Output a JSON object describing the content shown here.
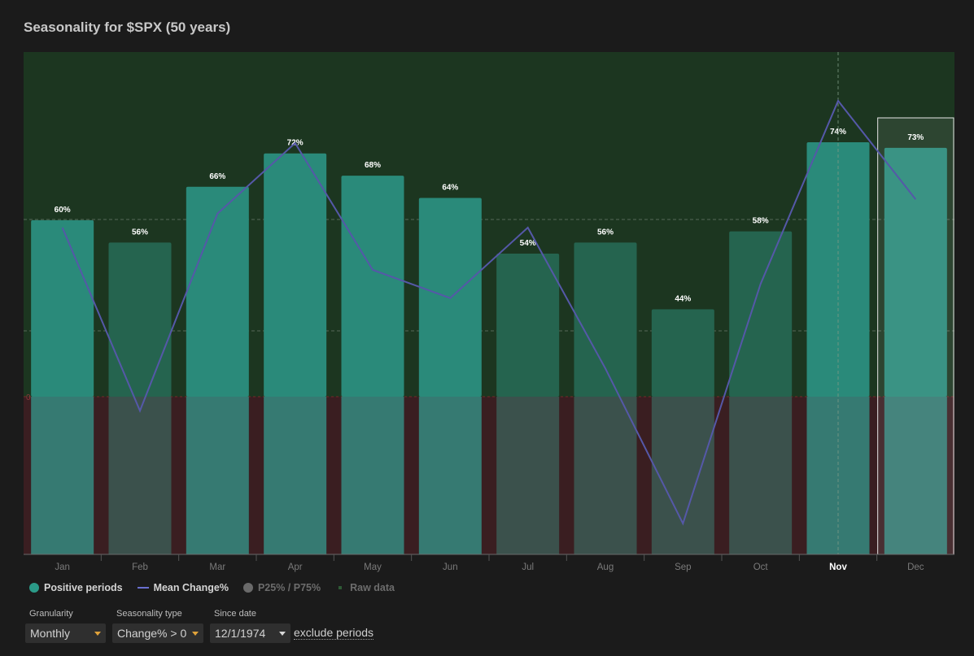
{
  "title": "Seasonality for $SPX (50 years)",
  "chart_data": {
    "type": "bar",
    "categories": [
      "Jan",
      "Feb",
      "Mar",
      "Apr",
      "May",
      "Jun",
      "Jul",
      "Aug",
      "Sep",
      "Oct",
      "Nov",
      "Dec"
    ],
    "positive_periods_pct": [
      60,
      56,
      66,
      72,
      68,
      64,
      54,
      56,
      44,
      58,
      74,
      73
    ],
    "bar_labels": [
      "60%",
      "56%",
      "66%",
      "72%",
      "68%",
      "64%",
      "54%",
      "56%",
      "44%",
      "58%",
      "74%",
      "73%"
    ],
    "mean_change_pct": [
      1.2,
      -0.1,
      1.3,
      1.8,
      0.9,
      0.7,
      1.2,
      0.2,
      -0.9,
      0.8,
      2.1,
      1.4
    ],
    "zero_line_label": "0",
    "highlighted_category": "Nov",
    "selected_category": "Dec",
    "series": [
      {
        "name": "Positive periods",
        "color": "#2a8a7a"
      },
      {
        "name": "Mean Change%",
        "color": "#5558a8"
      }
    ],
    "grid": true
  },
  "legend": [
    {
      "label": "Positive periods",
      "active": true,
      "color": "#2b9a88"
    },
    {
      "label": "Mean Change%",
      "active": true,
      "color": "#6a6fd0"
    },
    {
      "label": "P25% / P75%",
      "active": false,
      "color": "#6a6a6a"
    },
    {
      "label": "Raw data",
      "active": false,
      "color": "#2e5a35"
    }
  ],
  "controls": {
    "granularity_label": "Granularity",
    "granularity_value": "Monthly",
    "seasonality_label": "Seasonality type",
    "seasonality_value": "Change% > 0",
    "since_label": "Since date",
    "since_value": "12/1/1974",
    "exclude_label": "exclude periods"
  }
}
